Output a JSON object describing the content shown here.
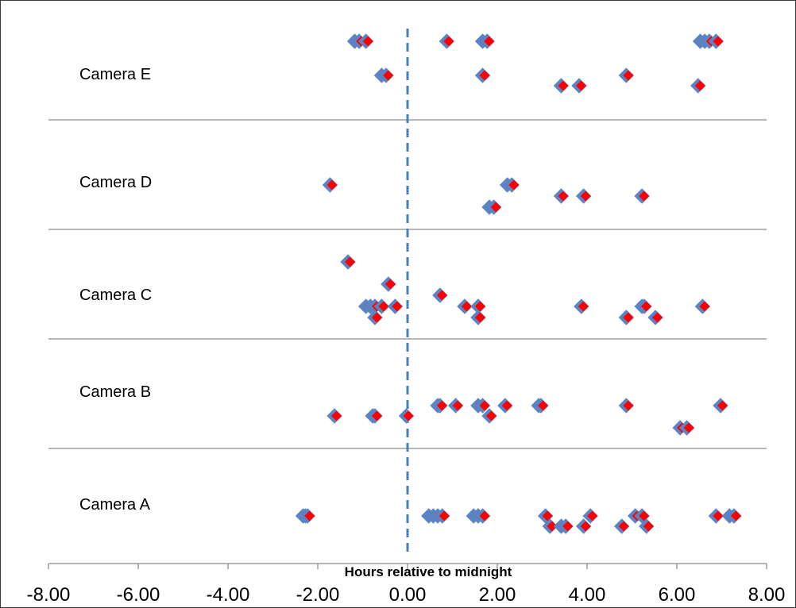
{
  "chart_data": {
    "type": "scatter",
    "title": "",
    "xlabel": "Hours relative to midnight",
    "ylabel": "",
    "xlim": [
      -8,
      8
    ],
    "x_ticks": [
      "-8.00",
      "-6.00",
      "-4.00",
      "-2.00",
      "0.00",
      "2.00",
      "4.00",
      "6.00",
      "8.00"
    ],
    "reference_line": {
      "x": 0,
      "style": "dashed",
      "color": "#4a7ebb"
    },
    "grid": false,
    "marker": {
      "shape": "diamond",
      "fill": "#ff0000",
      "outline": "#5b84c4"
    },
    "rows_top_to_bottom": [
      {
        "label": "Camera E",
        "points": [
          {
            "x": -1.15,
            "lane": 0
          },
          {
            "x": -1.05,
            "lane": 0
          },
          {
            "x": -0.9,
            "lane": 0
          },
          {
            "x": 0.9,
            "lane": 0
          },
          {
            "x": 1.7,
            "lane": 0
          },
          {
            "x": 1.8,
            "lane": 0
          },
          {
            "x": 6.55,
            "lane": 0
          },
          {
            "x": 6.65,
            "lane": 0
          },
          {
            "x": 6.75,
            "lane": 0
          },
          {
            "x": 6.9,
            "lane": 0
          },
          {
            "x": -0.55,
            "lane": 1
          },
          {
            "x": -0.45,
            "lane": 1
          },
          {
            "x": 1.7,
            "lane": 1
          },
          {
            "x": 4.9,
            "lane": 1
          },
          {
            "x": 3.45,
            "lane": 2
          },
          {
            "x": 3.85,
            "lane": 2
          },
          {
            "x": 6.5,
            "lane": 2
          }
        ]
      },
      {
        "label": "Camera D",
        "points": [
          {
            "x": -1.7,
            "lane": 0
          },
          {
            "x": 2.25,
            "lane": 0
          },
          {
            "x": 2.35,
            "lane": 0
          },
          {
            "x": 3.45,
            "lane": 1
          },
          {
            "x": 3.95,
            "lane": 1
          },
          {
            "x": 5.25,
            "lane": 1
          },
          {
            "x": 1.85,
            "lane": 2
          },
          {
            "x": 1.95,
            "lane": 2
          }
        ]
      },
      {
        "label": "Camera C",
        "points": [
          {
            "x": -1.3,
            "lane": 0
          },
          {
            "x": -0.4,
            "lane": 1
          },
          {
            "x": 0.75,
            "lane": 2
          },
          {
            "x": -0.9,
            "lane": 3
          },
          {
            "x": -0.8,
            "lane": 3
          },
          {
            "x": -0.7,
            "lane": 3
          },
          {
            "x": -0.55,
            "lane": 3
          },
          {
            "x": -0.25,
            "lane": 3
          },
          {
            "x": 1.3,
            "lane": 3
          },
          {
            "x": 1.6,
            "lane": 3
          },
          {
            "x": 3.9,
            "lane": 3
          },
          {
            "x": 5.25,
            "lane": 3
          },
          {
            "x": 5.3,
            "lane": 3
          },
          {
            "x": 6.6,
            "lane": 3
          },
          {
            "x": -0.7,
            "lane": 4
          },
          {
            "x": 1.6,
            "lane": 4
          },
          {
            "x": 4.9,
            "lane": 4
          },
          {
            "x": 5.55,
            "lane": 4
          }
        ]
      },
      {
        "label": "Camera B",
        "points": [
          {
            "x": 0.7,
            "lane": 0
          },
          {
            "x": 0.75,
            "lane": 0
          },
          {
            "x": 1.1,
            "lane": 0
          },
          {
            "x": 1.6,
            "lane": 0
          },
          {
            "x": 1.7,
            "lane": 0
          },
          {
            "x": 2.2,
            "lane": 0
          },
          {
            "x": 2.95,
            "lane": 0
          },
          {
            "x": 3.0,
            "lane": 0
          },
          {
            "x": 4.9,
            "lane": 0
          },
          {
            "x": 7.0,
            "lane": 0
          },
          {
            "x": -1.6,
            "lane": 1
          },
          {
            "x": -0.75,
            "lane": 1
          },
          {
            "x": -0.7,
            "lane": 1
          },
          {
            "x": 0.0,
            "lane": 1
          },
          {
            "x": 1.85,
            "lane": 1
          },
          {
            "x": 6.1,
            "lane": 2
          },
          {
            "x": 6.25,
            "lane": 2
          }
        ]
      },
      {
        "label": "Camera A",
        "points": [
          {
            "x": -2.3,
            "lane": 0
          },
          {
            "x": -2.25,
            "lane": 0
          },
          {
            "x": -2.2,
            "lane": 0
          },
          {
            "x": 0.5,
            "lane": 0
          },
          {
            "x": 0.6,
            "lane": 0
          },
          {
            "x": 0.7,
            "lane": 0
          },
          {
            "x": 0.8,
            "lane": 0
          },
          {
            "x": 1.5,
            "lane": 0
          },
          {
            "x": 1.6,
            "lane": 0
          },
          {
            "x": 1.7,
            "lane": 0
          },
          {
            "x": 3.1,
            "lane": 0
          },
          {
            "x": 4.1,
            "lane": 0
          },
          {
            "x": 5.1,
            "lane": 0
          },
          {
            "x": 5.25,
            "lane": 0
          },
          {
            "x": 6.9,
            "lane": 0
          },
          {
            "x": 7.2,
            "lane": 0
          },
          {
            "x": 7.3,
            "lane": 0
          },
          {
            "x": 3.2,
            "lane": 1
          },
          {
            "x": 3.45,
            "lane": 1
          },
          {
            "x": 3.55,
            "lane": 1
          },
          {
            "x": 3.95,
            "lane": 1
          },
          {
            "x": 4.8,
            "lane": 1
          },
          {
            "x": 5.35,
            "lane": 1
          }
        ]
      }
    ]
  }
}
